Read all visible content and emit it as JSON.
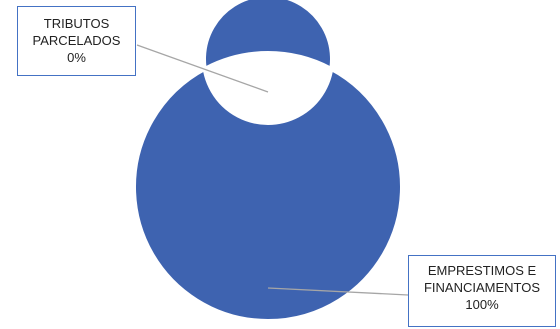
{
  "chart_data": {
    "type": "pie",
    "style": "donut",
    "title": "",
    "categories": [
      "TRIBUTOS PARCELADOS",
      "EMPRESTIMOS E FINANCIAMENTOS"
    ],
    "values": [
      0,
      100
    ],
    "labels": [
      {
        "line1": "TRIBUTOS",
        "line2": "PARCELADOS",
        "pct": "0%"
      },
      {
        "line1": "EMPRESTIMOS E",
        "line2": "FINANCIAMENTOS",
        "pct": "100%"
      }
    ],
    "colors": [
      "#4472c4",
      "#3e63b0"
    ],
    "legend": "none"
  }
}
